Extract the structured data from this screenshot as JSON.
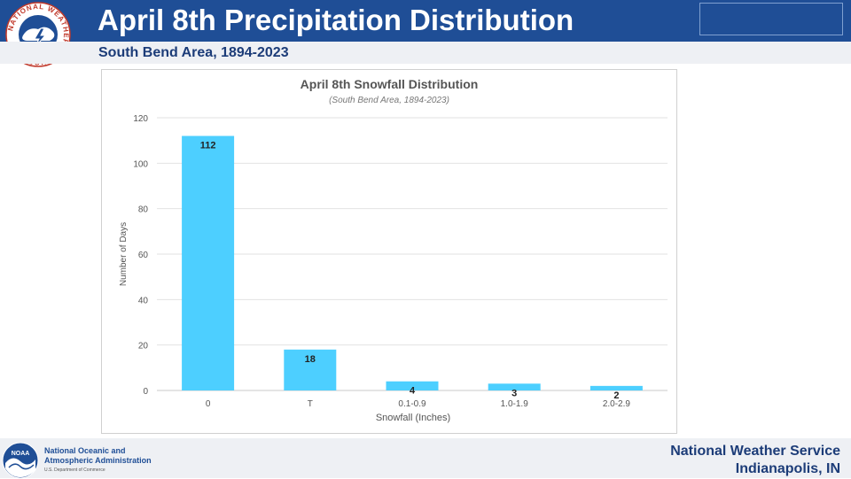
{
  "header": {
    "title": "April 8th Precipitation Distribution",
    "subtitle": "South Bend Area, 1894-2023",
    "logo_text": "NATIONAL WEATHER SERVICE"
  },
  "footer": {
    "noaa_name_line1": "National Oceanic and",
    "noaa_name_line2": "Atmospheric Administration",
    "noaa_dept": "U.S. Department of Commerce",
    "noaa_logo_text": "NOAA",
    "office_line1": "National Weather Service",
    "office_line2": "Indianapolis, IN"
  },
  "colors": {
    "header_bg": "#1f4e96",
    "bar": "#4dcfff",
    "accent_text": "#1c3c78"
  },
  "chart_data": {
    "type": "bar",
    "title": "April 8th Snowfall Distribution",
    "subtitle": "(South Bend Area, 1894-2023)",
    "xlabel": "Snowfall (Inches)",
    "ylabel": "Number of Days",
    "categories": [
      "0",
      "T",
      "0.1-0.9",
      "1.0-1.9",
      "2.0-2.9"
    ],
    "values": [
      112,
      18,
      4,
      3,
      2
    ],
    "ylim": [
      0,
      120
    ],
    "yticks": [
      0,
      20,
      40,
      60,
      80,
      100,
      120
    ],
    "grid": true,
    "legend": "none"
  }
}
